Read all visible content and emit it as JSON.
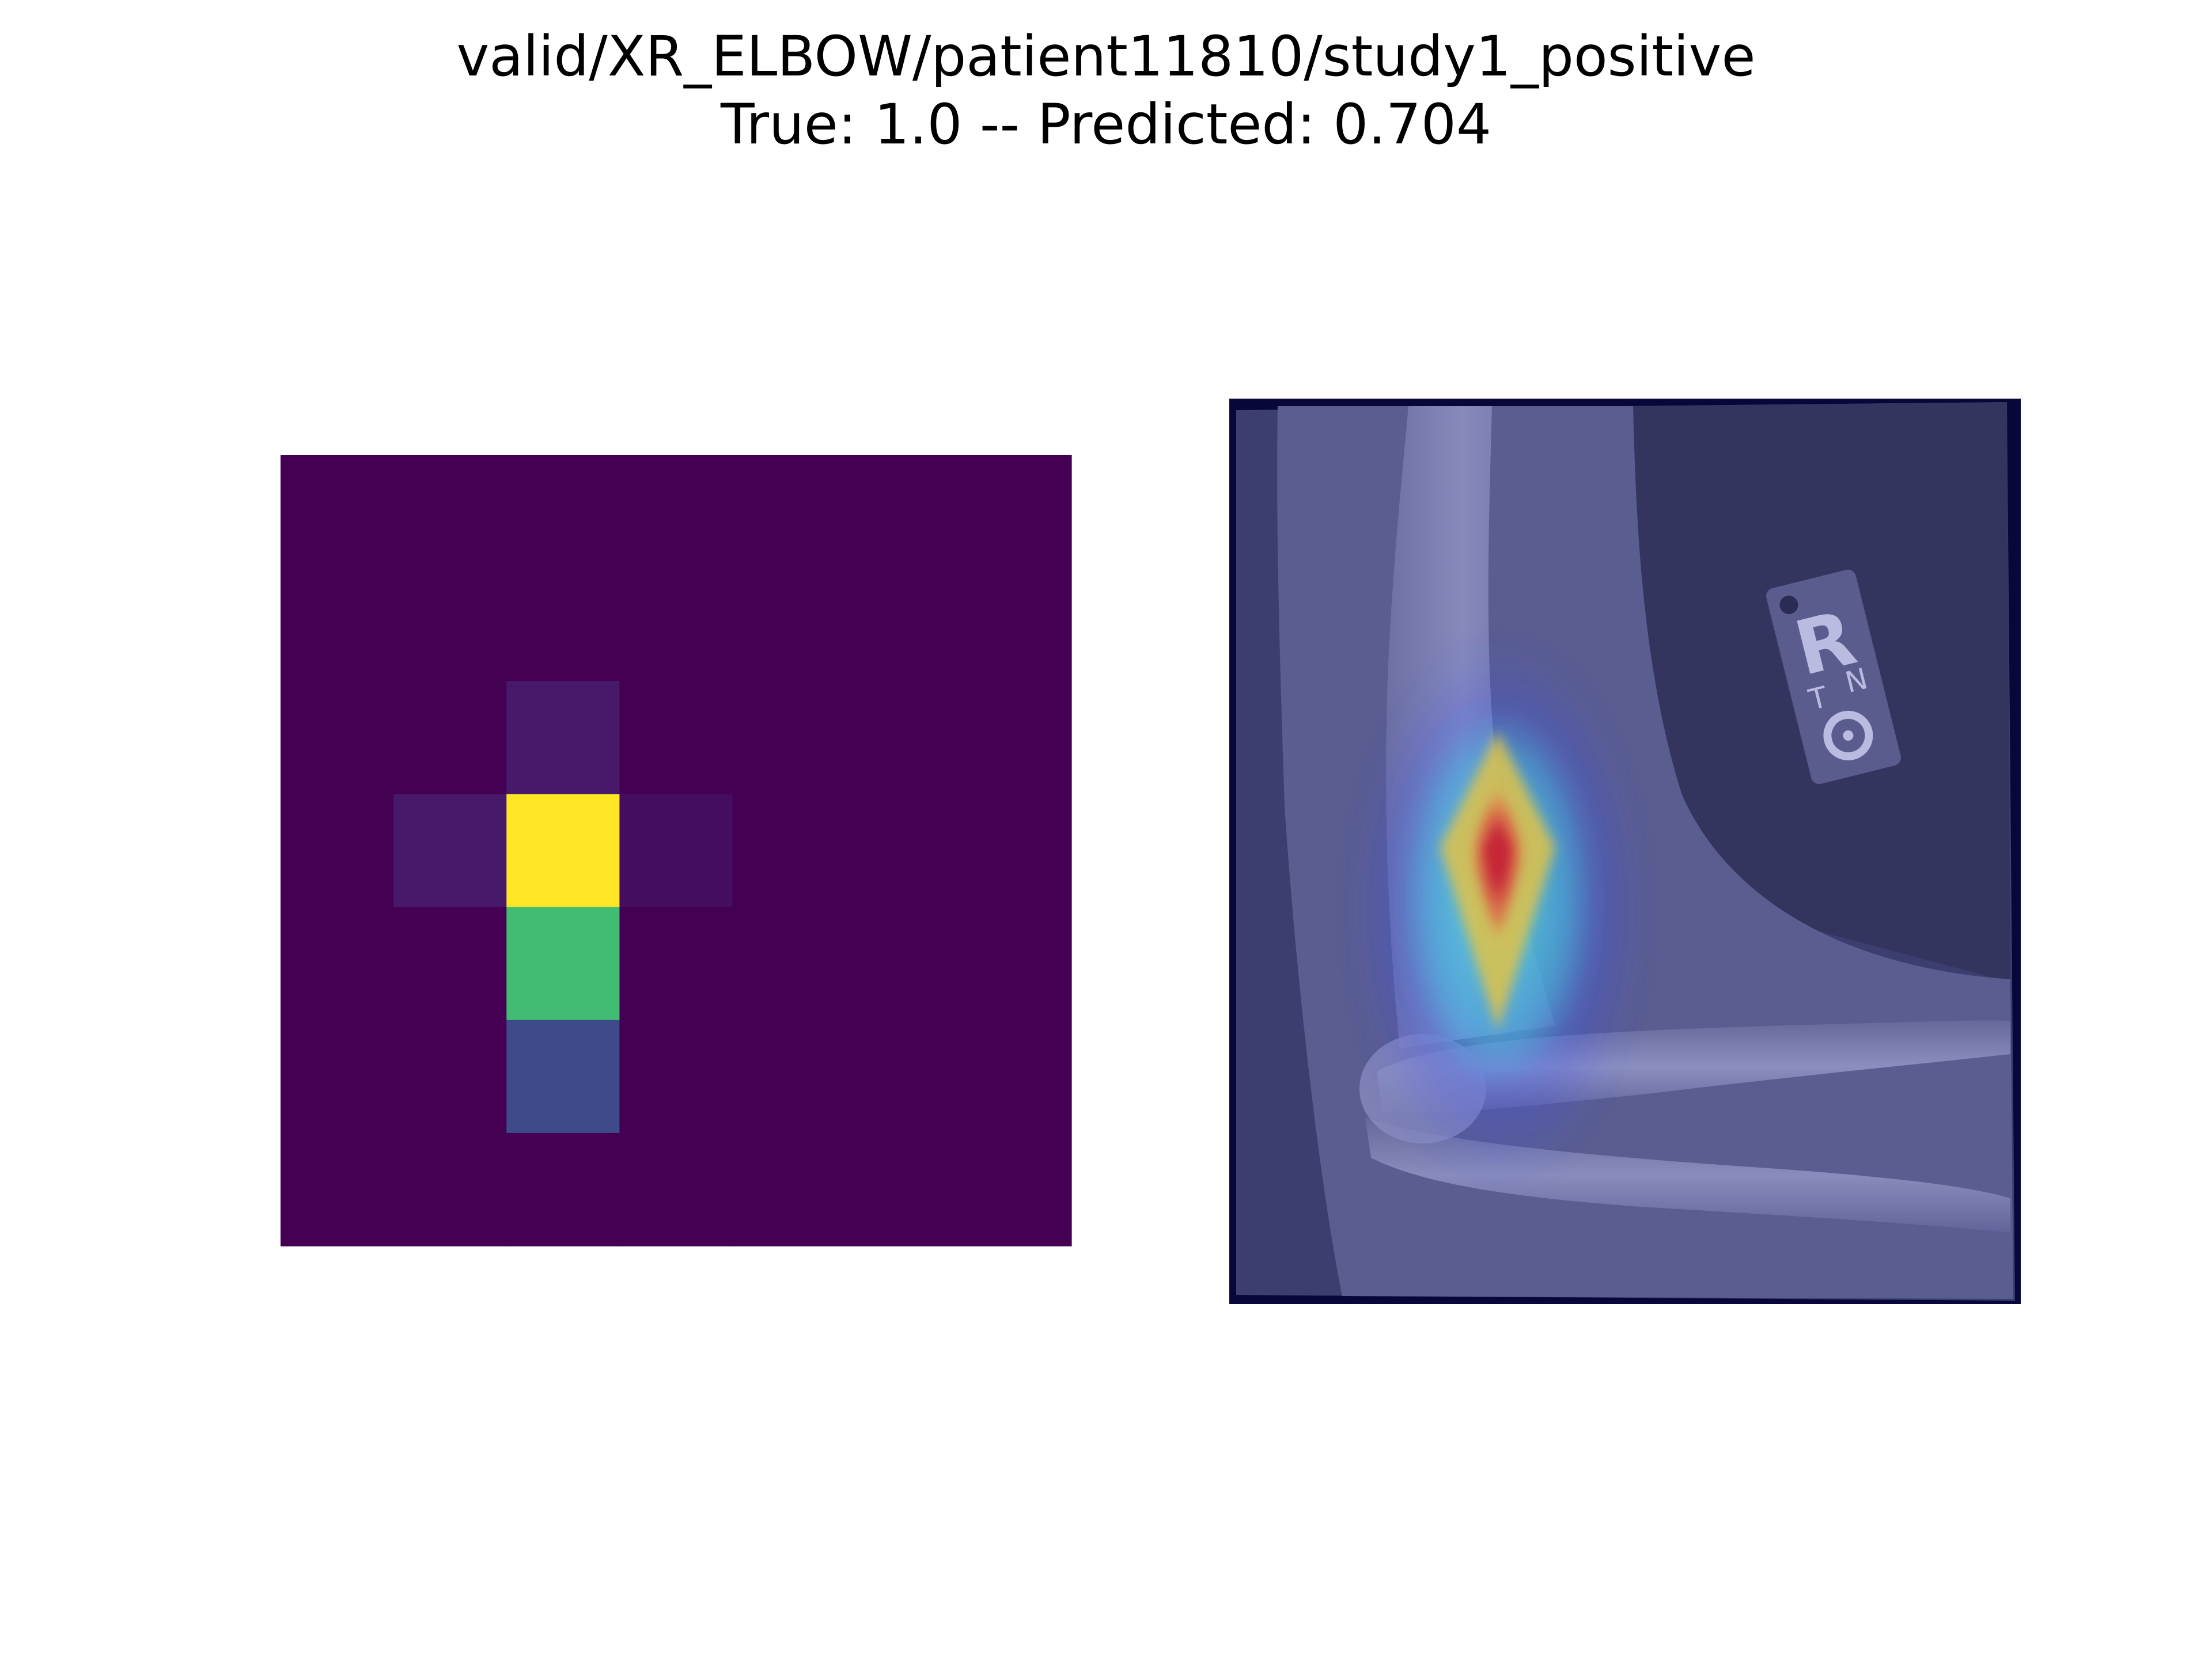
{
  "figure": {
    "title_line_1": "valid/XR_ELBOW/patient11810/study1_positive",
    "title_line_2": "True: 1.0 -- Predicted: 0.704"
  },
  "chart_data": [
    {
      "type": "heatmap",
      "colormap": "viridis",
      "axes_visible": false,
      "grid": false,
      "rows": 7,
      "cols": 7,
      "values": [
        [
          0.0,
          0.0,
          0.0,
          0.0,
          0.0,
          0.0,
          0.0
        ],
        [
          0.0,
          0.0,
          0.0,
          0.0,
          0.0,
          0.0,
          0.0
        ],
        [
          0.0,
          0.0,
          0.08,
          0.0,
          0.0,
          0.0,
          0.0
        ],
        [
          0.0,
          0.08,
          1.0,
          0.04,
          0.0,
          0.0,
          0.0
        ],
        [
          0.0,
          0.0,
          0.68,
          0.0,
          0.0,
          0.0,
          0.0
        ],
        [
          0.0,
          0.0,
          0.25,
          0.0,
          0.0,
          0.0,
          0.0
        ],
        [
          0.0,
          0.0,
          0.0,
          0.0,
          0.0,
          0.0,
          0.0
        ]
      ]
    },
    {
      "type": "heatmap",
      "description_kind": "overlay",
      "colormap": "jet",
      "axes_visible": false,
      "grid": false,
      "peak_value": 1.0
    }
  ]
}
